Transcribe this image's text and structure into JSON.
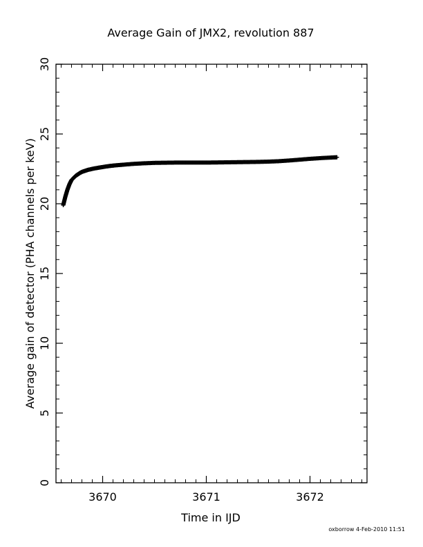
{
  "chart_data": {
    "type": "scatter",
    "title": "Average Gain of JMX2, revolution 887",
    "xlabel": "Time in IJD",
    "ylabel": "Average gain of detector (PHA channels per keV)",
    "xlim": [
      3669.55,
      3672.55
    ],
    "ylim": [
      0,
      30
    ],
    "x_ticks": [
      3670,
      3671,
      3672
    ],
    "x_tick_labels": [
      "3670",
      "3671",
      "3672"
    ],
    "y_ticks": [
      0,
      5,
      10,
      15,
      20,
      25,
      30
    ],
    "y_tick_labels": [
      "0",
      "5",
      "10",
      "15",
      "20",
      "25",
      "30"
    ],
    "x_minor_step": 0.1,
    "y_minor_step": 1,
    "marker": "plus",
    "grid": false,
    "series": [
      {
        "color": "#000000",
        "points": [
          [
            3669.62,
            19.9
          ],
          [
            3669.63,
            20.2
          ],
          [
            3669.64,
            20.5
          ],
          [
            3669.65,
            20.75
          ],
          [
            3669.66,
            21.0
          ],
          [
            3669.67,
            21.2
          ],
          [
            3669.68,
            21.4
          ],
          [
            3669.69,
            21.55
          ],
          [
            3669.7,
            21.7
          ],
          [
            3669.72,
            21.85
          ],
          [
            3669.74,
            22.0
          ],
          [
            3669.76,
            22.1
          ],
          [
            3669.78,
            22.2
          ],
          [
            3669.8,
            22.28
          ],
          [
            3669.83,
            22.36
          ],
          [
            3669.86,
            22.43
          ],
          [
            3669.9,
            22.5
          ],
          [
            3669.95,
            22.57
          ],
          [
            3670.0,
            22.63
          ],
          [
            3670.06,
            22.7
          ],
          [
            3670.12,
            22.75
          ],
          [
            3670.2,
            22.8
          ],
          [
            3670.3,
            22.86
          ],
          [
            3670.4,
            22.9
          ],
          [
            3670.5,
            22.93
          ],
          [
            3670.6,
            22.94
          ],
          [
            3670.7,
            22.95
          ],
          [
            3670.8,
            22.95
          ],
          [
            3670.9,
            22.95
          ],
          [
            3671.0,
            22.95
          ],
          [
            3671.1,
            22.96
          ],
          [
            3671.2,
            22.97
          ],
          [
            3671.3,
            22.98
          ],
          [
            3671.4,
            22.99
          ],
          [
            3671.5,
            23.0
          ],
          [
            3671.6,
            23.02
          ],
          [
            3671.7,
            23.05
          ],
          [
            3671.8,
            23.1
          ],
          [
            3671.9,
            23.16
          ],
          [
            3672.0,
            23.22
          ],
          [
            3672.1,
            23.27
          ],
          [
            3672.2,
            23.31
          ],
          [
            3672.26,
            23.33
          ]
        ]
      }
    ],
    "footer": "oxborrow  4-Feb-2010 11:51"
  }
}
